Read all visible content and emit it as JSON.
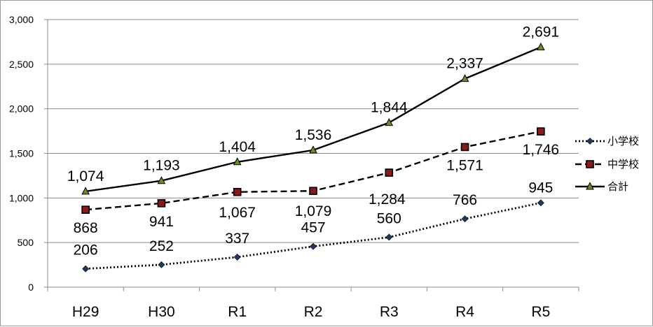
{
  "chart_data": {
    "type": "line",
    "categories": [
      "H29",
      "H30",
      "R1",
      "R2",
      "R3",
      "R4",
      "R5"
    ],
    "ylim": [
      0,
      3000
    ],
    "yticks": [
      0,
      500,
      1000,
      1500,
      2000,
      2500,
      3000
    ],
    "ytick_labels": [
      "0",
      "500",
      "1,000",
      "1,500",
      "2,000",
      "2,500",
      "3,000"
    ],
    "grid": true,
    "legend_position": "right",
    "series": [
      {
        "name": "小学校",
        "values": [
          206,
          252,
          337,
          457,
          560,
          766,
          945
        ],
        "labels": [
          "206",
          "252",
          "337",
          "457",
          "560",
          "766",
          "945"
        ],
        "style": "dotted",
        "marker": "diamond",
        "color": "#000000",
        "marker_color": "#1f3864"
      },
      {
        "name": "中学校",
        "values": [
          868,
          941,
          1067,
          1079,
          1284,
          1571,
          1746
        ],
        "labels": [
          "868",
          "941",
          "1,067",
          "1,079",
          "1,284",
          "1,571",
          "1,746"
        ],
        "style": "dashed",
        "marker": "square",
        "color": "#000000",
        "marker_color": "#8b1a1a"
      },
      {
        "name": "合計",
        "values": [
          1074,
          1193,
          1404,
          1536,
          1844,
          2337,
          2691
        ],
        "labels": [
          "1,074",
          "1,193",
          "1,404",
          "1,536",
          "1,844",
          "2,337",
          "2,691"
        ],
        "style": "solid",
        "marker": "triangle",
        "color": "#000000",
        "marker_color": "#6b8e23"
      }
    ]
  }
}
